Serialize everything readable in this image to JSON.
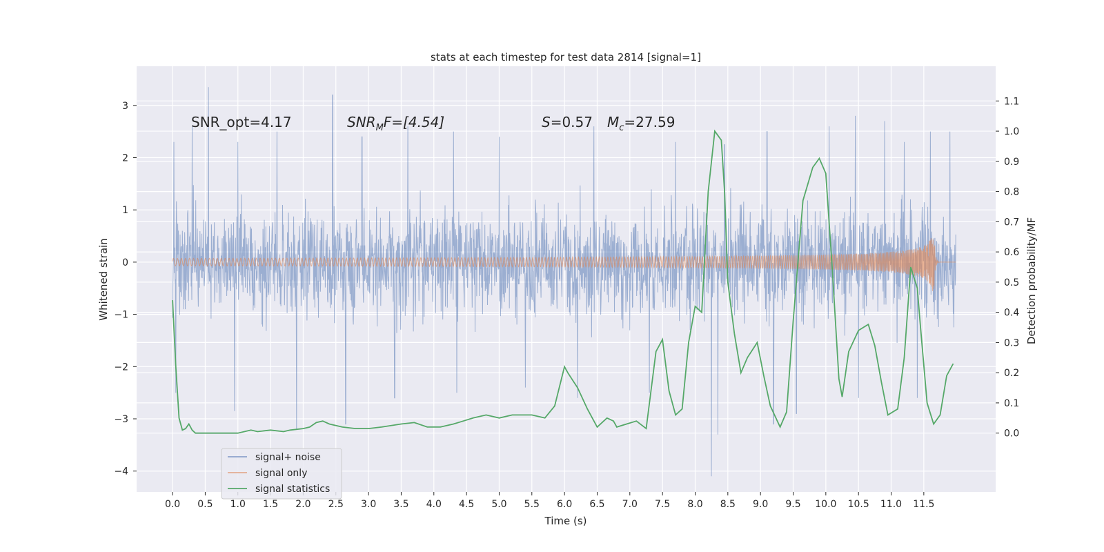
{
  "chart_data": {
    "type": "line",
    "title": "stats at each timestep for test data 2814 [signal=1]",
    "xlabel": "Time (s)",
    "ylabel_left": "Whitened strain",
    "ylabel_right": "Detection probability/MF",
    "xlim": [
      -0.55,
      12.6
    ],
    "ylim_left": [
      -4.4,
      3.75
    ],
    "ylim_right": [
      -0.195,
      1.215
    ],
    "xticks": [
      0.0,
      0.5,
      1.0,
      1.5,
      2.0,
      2.5,
      3.0,
      3.5,
      4.0,
      4.5,
      5.0,
      5.5,
      6.0,
      6.5,
      7.0,
      7.5,
      8.0,
      8.5,
      9.0,
      9.5,
      10.0,
      10.5,
      11.0,
      11.5
    ],
    "xtick_labels": [
      "0.0",
      "0.5",
      "1.0",
      "1.5",
      "2.0",
      "2.5",
      "3.0",
      "3.5",
      "4.0",
      "4.5",
      "5.0",
      "5.5",
      "6.0",
      "6.5",
      "7.0",
      "7.5",
      "8.0",
      "8.5",
      "9.0",
      "9.5",
      "10.0",
      "10.5",
      "11.0",
      "11.5"
    ],
    "yticks_left": [
      3,
      2,
      1,
      0,
      -1,
      -2,
      -3,
      -4
    ],
    "ytick_labels_left": [
      "3",
      "2",
      "1",
      "0",
      "−1",
      "−2",
      "−3",
      "−4"
    ],
    "yticks_right": [
      1.1,
      1.0,
      0.9,
      0.8,
      0.7,
      0.6,
      0.5,
      0.4,
      0.3,
      0.2,
      0.1,
      0.0
    ],
    "ytick_labels_right": [
      "1.1",
      "1.0",
      "0.9",
      "0.8",
      "0.7",
      "0.6",
      "0.5",
      "0.4",
      "0.3",
      "0.2",
      "0.1",
      "0.0"
    ],
    "grid": true,
    "legend_position": "lower-left",
    "annotations": {
      "snr_opt": "SNR_opt=4.17",
      "snr_mf_main": "SNR",
      "snr_mf_sub": "M",
      "snr_mf_rest": "F=[4.54]",
      "s_label": "S",
      "s_rest": "=0.57",
      "mc_label": "M",
      "mc_sub": "c",
      "mc_rest": "=27.59"
    },
    "series": [
      {
        "name": "signal+ noise",
        "color": "#4c72b0",
        "axis": "left",
        "x_range": [
          0.0,
          11.99
        ],
        "envelope_typical": [
          -1.4,
          1.4
        ],
        "peaks": [
          [
            0.02,
            2.3
          ],
          [
            0.3,
            2.6
          ],
          [
            0.55,
            3.35
          ],
          [
            1.0,
            2.3
          ],
          [
            1.6,
            2.5
          ],
          [
            2.45,
            3.2
          ],
          [
            2.9,
            2.4
          ],
          [
            3.6,
            2.6
          ],
          [
            4.3,
            2.5
          ],
          [
            5.0,
            2.4
          ],
          [
            6.45,
            2.6
          ],
          [
            7.7,
            2.3
          ],
          [
            8.45,
            2.25
          ],
          [
            9.1,
            2.5
          ],
          [
            10.05,
            2.6
          ],
          [
            10.45,
            2.8
          ],
          [
            10.9,
            2.7
          ],
          [
            11.2,
            2.3
          ],
          [
            11.6,
            2.5
          ],
          [
            11.9,
            2.5
          ]
        ],
        "troughs": [
          [
            0.05,
            -2.5
          ],
          [
            0.95,
            -2.85
          ],
          [
            1.9,
            -3.2
          ],
          [
            2.65,
            -3.1
          ],
          [
            3.4,
            -2.6
          ],
          [
            4.35,
            -2.5
          ],
          [
            5.4,
            -2.4
          ],
          [
            6.2,
            -2.6
          ],
          [
            7.3,
            -2.5
          ],
          [
            8.25,
            -4.1
          ],
          [
            8.35,
            -3.3
          ],
          [
            9.2,
            -3.1
          ],
          [
            9.55,
            -2.9
          ],
          [
            10.5,
            -2.6
          ],
          [
            11.4,
            -2.6
          ]
        ]
      },
      {
        "name": "signal only",
        "color": "#dd8452",
        "axis": "left",
        "merger_time": 11.65,
        "peak_amplitude": 0.85,
        "trough_amplitude": -0.85
      },
      {
        "name": "signal statistics",
        "color": "#55a868",
        "axis": "right",
        "x": [
          0.0,
          0.05,
          0.1,
          0.15,
          0.2,
          0.25,
          0.3,
          0.35,
          0.4,
          0.5,
          0.6,
          0.7,
          0.8,
          1.0,
          1.2,
          1.3,
          1.5,
          1.7,
          1.8,
          2.0,
          2.1,
          2.2,
          2.3,
          2.4,
          2.6,
          2.8,
          3.0,
          3.2,
          3.5,
          3.7,
          3.9,
          4.1,
          4.3,
          4.45,
          4.6,
          4.8,
          5.0,
          5.2,
          5.5,
          5.7,
          5.85,
          6.0,
          6.05,
          6.2,
          6.35,
          6.5,
          6.65,
          6.75,
          6.8,
          6.95,
          7.1,
          7.25,
          7.4,
          7.5,
          7.6,
          7.7,
          7.8,
          7.9,
          8.0,
          8.1,
          8.2,
          8.3,
          8.4,
          8.45,
          8.5,
          8.6,
          8.7,
          8.8,
          8.95,
          9.05,
          9.15,
          9.3,
          9.4,
          9.5,
          9.65,
          9.8,
          9.9,
          10.0,
          10.1,
          10.2,
          10.25,
          10.35,
          10.5,
          10.65,
          10.75,
          10.85,
          10.95,
          11.1,
          11.2,
          11.3,
          11.4,
          11.45,
          11.55,
          11.65,
          11.75,
          11.85,
          11.95
        ],
        "y": [
          0.44,
          0.22,
          0.05,
          0.01,
          0.015,
          0.03,
          0.01,
          0.0,
          0.0,
          0.0,
          0.0,
          0.0,
          0.0,
          0.0,
          0.01,
          0.005,
          0.01,
          0.005,
          0.01,
          0.015,
          0.02,
          0.035,
          0.04,
          0.03,
          0.02,
          0.015,
          0.015,
          0.02,
          0.03,
          0.035,
          0.02,
          0.02,
          0.03,
          0.04,
          0.05,
          0.06,
          0.05,
          0.06,
          0.06,
          0.05,
          0.09,
          0.22,
          0.2,
          0.15,
          0.08,
          0.02,
          0.05,
          0.04,
          0.02,
          0.03,
          0.04,
          0.015,
          0.27,
          0.31,
          0.14,
          0.06,
          0.08,
          0.3,
          0.42,
          0.4,
          0.8,
          1.0,
          0.97,
          0.8,
          0.5,
          0.33,
          0.2,
          0.25,
          0.3,
          0.19,
          0.09,
          0.02,
          0.07,
          0.37,
          0.77,
          0.88,
          0.91,
          0.86,
          0.54,
          0.18,
          0.12,
          0.27,
          0.34,
          0.36,
          0.29,
          0.17,
          0.06,
          0.08,
          0.25,
          0.55,
          0.48,
          0.35,
          0.1,
          0.03,
          0.06,
          0.19,
          0.23
        ]
      }
    ]
  }
}
